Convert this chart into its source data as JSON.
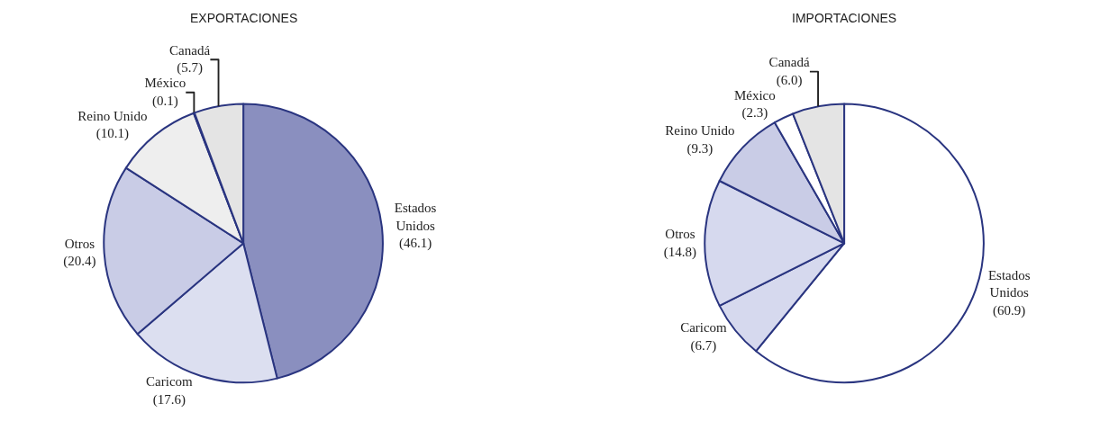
{
  "chart_data": [
    {
      "type": "pie",
      "title": "EXPORTACIONES",
      "categories": [
        "Estados Unidos",
        "Caricom",
        "Otros",
        "Reino Unido",
        "México",
        "Canadá"
      ],
      "values": [
        46.1,
        17.6,
        20.4,
        10.1,
        0.1,
        5.7
      ],
      "value_labels": [
        "(46.1)",
        "(17.6)",
        "(20.4)",
        "(10.1)",
        "(0.1)",
        "(5.7)"
      ],
      "colors": [
        "#8a8fbf",
        "#dcdff0",
        "#c9cce6",
        "#eeeeee",
        "#ffffff",
        "#e4e4e4"
      ]
    },
    {
      "type": "pie",
      "title": "IMPORTACIONES",
      "categories": [
        "Estados Unidos",
        "Caricom",
        "Otros",
        "Reino Unido",
        "México",
        "Canadá"
      ],
      "values": [
        60.9,
        6.7,
        14.8,
        9.3,
        2.3,
        6.0
      ],
      "value_labels": [
        "(60.9)",
        "(6.7)",
        "(14.8)",
        "(9.3)",
        "(2.3)",
        "(6.0)"
      ],
      "colors": [
        "#ffffff",
        "#d6d9ee",
        "#d6d9ee",
        "#c9cce6",
        "#ffffff",
        "#e4e4e4"
      ]
    }
  ]
}
